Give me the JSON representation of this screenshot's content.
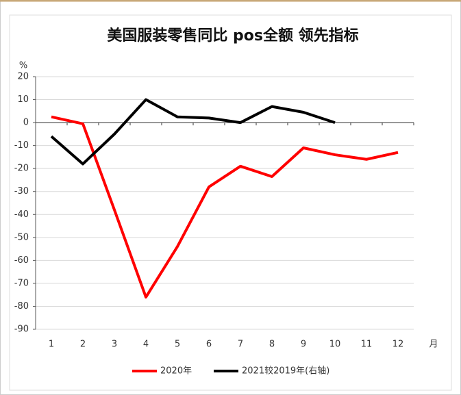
{
  "chart_data": {
    "type": "line",
    "title": "美国服装零售同比 pos全额 领先指标",
    "y_label": "%",
    "x_label": "月",
    "categories": [
      "1",
      "2",
      "3",
      "4",
      "5",
      "6",
      "7",
      "8",
      "9",
      "10",
      "11",
      "12"
    ],
    "series": [
      {
        "name": "2020年",
        "color": "#ff0000",
        "values": [
          2.5,
          -0.5,
          -38,
          -76,
          -54,
          -28,
          -19,
          -23.5,
          -11,
          -14,
          -16,
          -13
        ]
      },
      {
        "name": "2021较2019年(右轴)",
        "color": "#000000",
        "values": [
          -6,
          -18,
          -5,
          10,
          2.5,
          2,
          0,
          7,
          4.5,
          0,
          null,
          null
        ]
      }
    ],
    "ylim": [
      -90,
      20
    ],
    "yticks": [
      -90,
      -80,
      -70,
      -60,
      -50,
      -40,
      -30,
      -20,
      -10,
      0,
      10,
      20
    ],
    "grid": true
  }
}
